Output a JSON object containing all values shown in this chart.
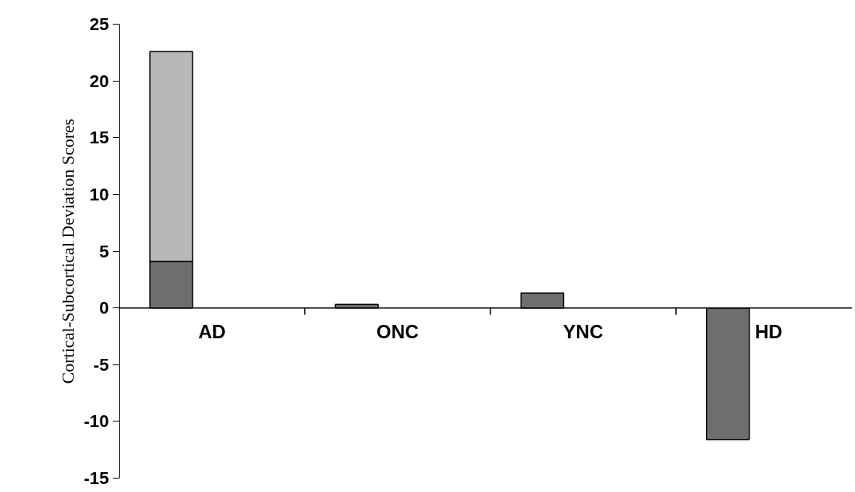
{
  "chart_data": {
    "type": "bar",
    "ylabel": "Cortical-Subcortical Deviation Scores",
    "categories": [
      "AD",
      "ONC",
      "YNC",
      "HD"
    ],
    "stacked": true,
    "series": [
      {
        "color": "#6e6e6e",
        "values": [
          4.1,
          0.3,
          1.3,
          -11.6
        ]
      },
      {
        "color": "#b8b8b8",
        "values": [
          18.5,
          0,
          0,
          0
        ]
      }
    ],
    "ylim": [
      -15,
      25
    ],
    "yticks": [
      -15,
      -10,
      -5,
      0,
      5,
      10,
      15,
      20,
      25
    ]
  }
}
